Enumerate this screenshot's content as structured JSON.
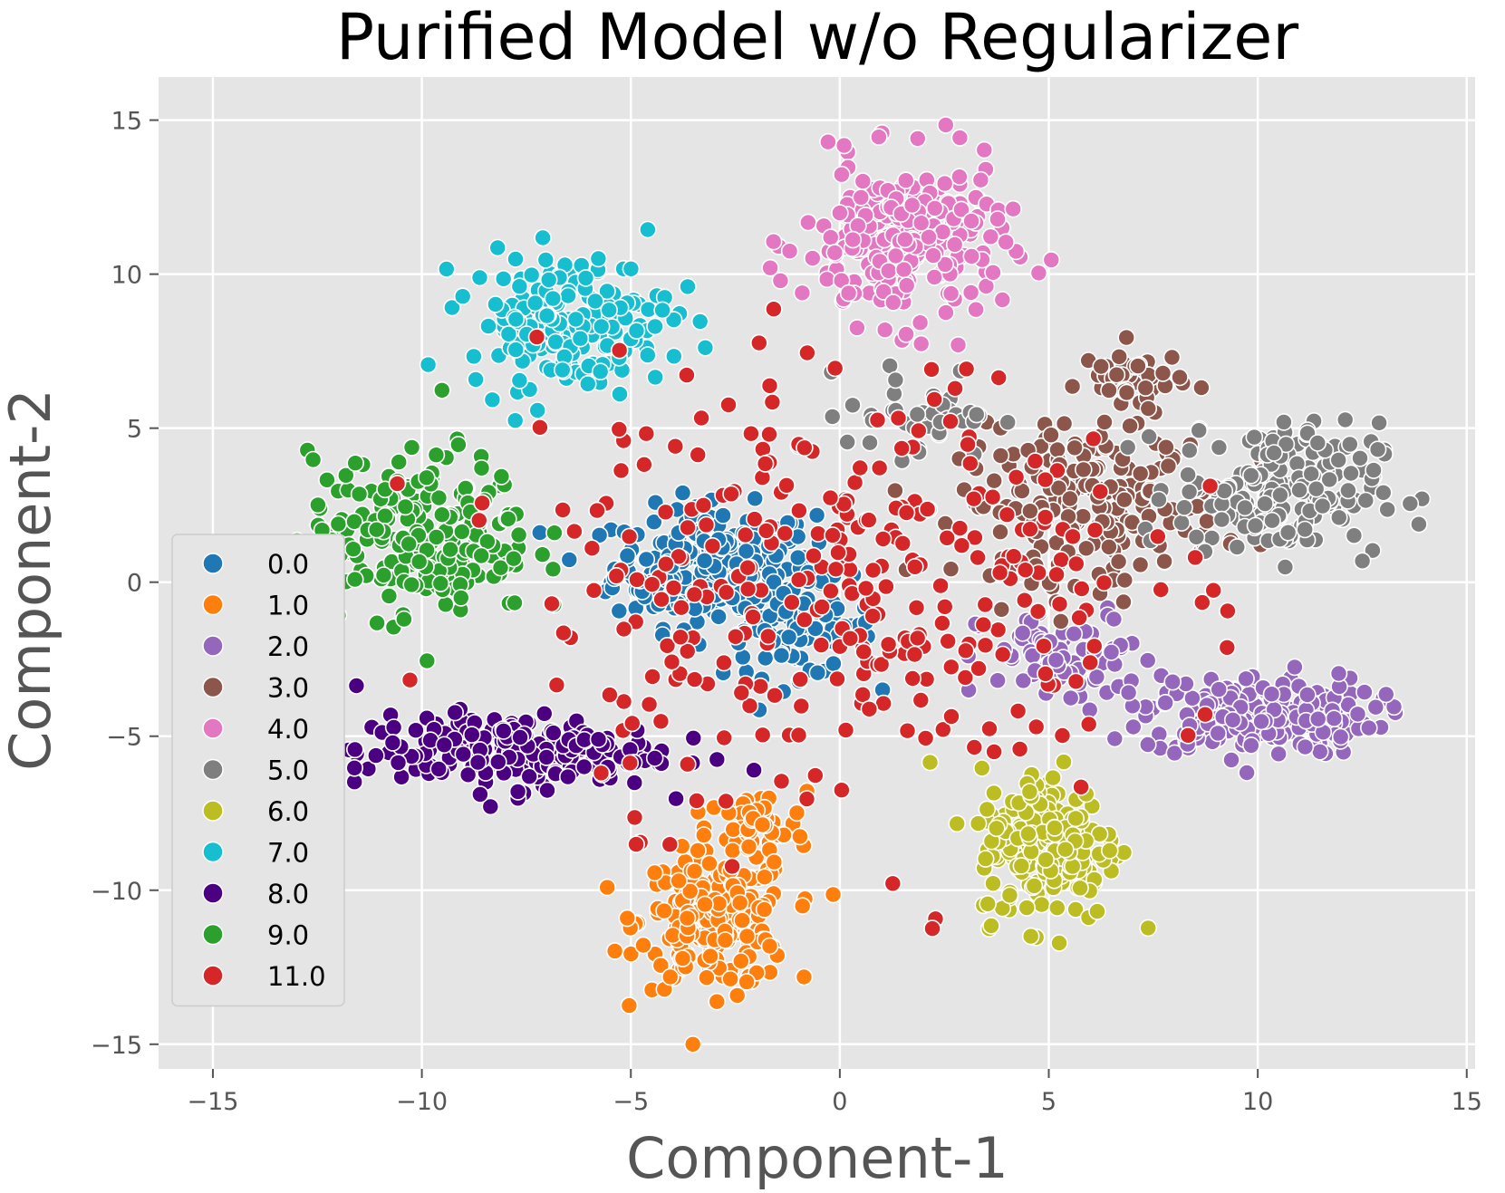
{
  "chart_data": {
    "type": "scatter",
    "title": "Purified Model w/o Regularizer",
    "xlabel": "Component-1",
    "ylabel": "Component-2",
    "xlim": [
      -16.3,
      15.2
    ],
    "ylim": [
      -15.8,
      16.4
    ],
    "xticks": [
      -15,
      -10,
      -5,
      0,
      5,
      10,
      15
    ],
    "yticks": [
      -15,
      -10,
      -5,
      0,
      5,
      10,
      15
    ],
    "xtick_labels": [
      "−15",
      "−10",
      "−5",
      "0",
      "5",
      "10",
      "15"
    ],
    "ytick_labels": [
      "−15",
      "−10",
      "−5",
      "0",
      "5",
      "10",
      "15"
    ],
    "grid": true,
    "background": "#e5e5e5",
    "legend_position": "lower-left",
    "series": [
      {
        "name": "0.0",
        "color": "#1f77b4",
        "clusters": [
          {
            "cx": -3.0,
            "cy": 0.5,
            "sx": 2.0,
            "sy": 1.6,
            "n": 260
          },
          {
            "cx": -1.0,
            "cy": -1.5,
            "sx": 1.5,
            "sy": 1.3,
            "n": 90
          }
        ]
      },
      {
        "name": "1.0",
        "color": "#ff7f0e",
        "clusters": [
          {
            "cx": -3.0,
            "cy": -11.0,
            "sx": 1.5,
            "sy": 1.8,
            "n": 220
          },
          {
            "cx": -2.0,
            "cy": -8.0,
            "sx": 1.0,
            "sy": 1.0,
            "n": 50
          }
        ]
      },
      {
        "name": "2.0",
        "color": "#9467bd",
        "clusters": [
          {
            "cx": 10.0,
            "cy": -4.3,
            "sx": 2.3,
            "sy": 1.1,
            "n": 220
          },
          {
            "cx": 5.5,
            "cy": -2.5,
            "sx": 1.8,
            "sy": 1.3,
            "n": 80
          }
        ]
      },
      {
        "name": "3.0",
        "color": "#8c564b",
        "clusters": [
          {
            "cx": 6.0,
            "cy": 2.5,
            "sx": 2.6,
            "sy": 2.0,
            "n": 200
          },
          {
            "cx": 7.0,
            "cy": 6.5,
            "sx": 1.0,
            "sy": 1.0,
            "n": 50
          }
        ]
      },
      {
        "name": "4.0",
        "color": "#e377c2",
        "clusters": [
          {
            "cx": 1.5,
            "cy": 11.0,
            "sx": 2.0,
            "sy": 2.2,
            "n": 240
          }
        ]
      },
      {
        "name": "5.0",
        "color": "#7f7f7f",
        "clusters": [
          {
            "cx": 10.5,
            "cy": 3.0,
            "sx": 2.0,
            "sy": 1.8,
            "n": 190
          },
          {
            "cx": 2.0,
            "cy": 5.5,
            "sx": 1.5,
            "sy": 1.2,
            "n": 40
          }
        ]
      },
      {
        "name": "6.0",
        "color": "#bcbd22",
        "clusters": [
          {
            "cx": 5.0,
            "cy": -8.5,
            "sx": 1.4,
            "sy": 2.1,
            "n": 200
          }
        ]
      },
      {
        "name": "7.0",
        "color": "#17becf",
        "clusters": [
          {
            "cx": -6.5,
            "cy": 8.5,
            "sx": 2.0,
            "sy": 1.8,
            "n": 190
          }
        ]
      },
      {
        "name": "8.0",
        "color": "#4b0082",
        "clusters": [
          {
            "cx": -8.0,
            "cy": -5.5,
            "sx": 3.0,
            "sy": 1.0,
            "n": 220
          }
        ]
      },
      {
        "name": "9.0",
        "color": "#2ca02c",
        "clusters": [
          {
            "cx": -10.0,
            "cy": 1.5,
            "sx": 2.2,
            "sy": 2.2,
            "n": 220
          }
        ]
      },
      {
        "name": "11.0",
        "color": "#d62728",
        "clusters": [
          {
            "cx": 0.0,
            "cy": 0.0,
            "sx": 6.0,
            "sy": 6.0,
            "n": 320
          }
        ]
      }
    ]
  }
}
